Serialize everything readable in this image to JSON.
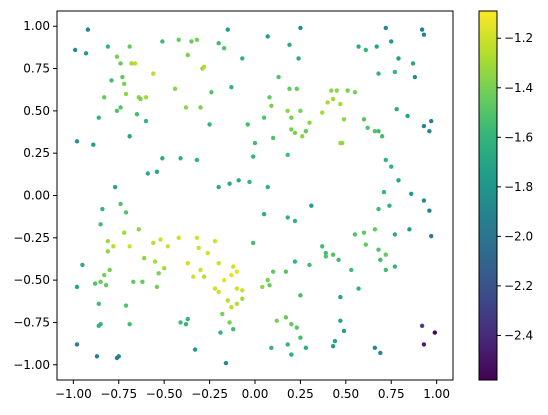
{
  "chart_data": {
    "type": "scatter",
    "title": "",
    "xlabel": "",
    "ylabel": "",
    "xlim": [
      -1.09,
      1.09
    ],
    "ylim": [
      -1.09,
      1.09
    ],
    "xticks": [
      -1.0,
      -0.75,
      -0.5,
      -0.25,
      0.0,
      0.25,
      0.5,
      0.75,
      1.0
    ],
    "xtick_labels": [
      "−1.00",
      "−0.75",
      "−0.50",
      "−0.25",
      "0.00",
      "0.25",
      "0.50",
      "0.75",
      "1.00"
    ],
    "yticks": [
      -1.0,
      -0.75,
      -0.5,
      -0.25,
      0.0,
      0.25,
      0.5,
      0.75,
      1.0
    ],
    "ytick_labels": [
      "−1.00",
      "−0.75",
      "−0.50",
      "−0.25",
      "0.00",
      "0.25",
      "0.50",
      "0.75",
      "1.00"
    ],
    "grid": false,
    "colormap": "viridis",
    "colorbar": {
      "vmin": -2.58,
      "vmax": -1.09,
      "ticks": [
        -2.4,
        -2.2,
        -2.0,
        -1.8,
        -1.6,
        -1.4,
        -1.2
      ],
      "tick_labels": [
        "−2.4",
        "−2.2",
        "−2.0",
        "−1.8",
        "−1.6",
        "−1.4",
        "−1.2"
      ]
    },
    "points": [
      {
        "x": -0.99,
        "y": 0.86,
        "c": -1.85
      },
      {
        "x": -0.92,
        "y": 0.98,
        "c": -1.9
      },
      {
        "x": -0.93,
        "y": 0.84,
        "c": -1.75
      },
      {
        "x": -0.81,
        "y": 0.88,
        "c": -1.6
      },
      {
        "x": -0.79,
        "y": 0.68,
        "c": -1.55
      },
      {
        "x": -0.76,
        "y": 0.82,
        "c": -1.4
      },
      {
        "x": -0.74,
        "y": 0.78,
        "c": -1.45
      },
      {
        "x": -0.69,
        "y": 0.88,
        "c": -1.45
      },
      {
        "x": -0.68,
        "y": 0.78,
        "c": -1.3
      },
      {
        "x": -0.66,
        "y": 0.78,
        "c": -1.25
      },
      {
        "x": -0.73,
        "y": 0.7,
        "c": -1.45
      },
      {
        "x": -0.72,
        "y": 0.66,
        "c": -1.4
      },
      {
        "x": -0.83,
        "y": 0.58,
        "c": -1.45
      },
      {
        "x": -0.74,
        "y": 0.52,
        "c": -1.5
      },
      {
        "x": -0.71,
        "y": 0.6,
        "c": -1.35
      },
      {
        "x": -0.64,
        "y": 0.58,
        "c": -1.35
      },
      {
        "x": -0.63,
        "y": 0.57,
        "c": -1.4
      },
      {
        "x": -0.6,
        "y": 0.58,
        "c": -1.3
      },
      {
        "x": -0.65,
        "y": 0.48,
        "c": -1.55
      },
      {
        "x": -0.86,
        "y": 0.46,
        "c": -1.6
      },
      {
        "x": -0.76,
        "y": 0.5,
        "c": -1.5
      },
      {
        "x": -0.56,
        "y": 0.72,
        "c": -1.25
      },
      {
        "x": -0.51,
        "y": 0.91,
        "c": -1.55
      },
      {
        "x": -0.42,
        "y": 0.92,
        "c": -1.45
      },
      {
        "x": -0.35,
        "y": 0.91,
        "c": -1.45
      },
      {
        "x": -0.37,
        "y": 0.83,
        "c": -1.4
      },
      {
        "x": -0.32,
        "y": 0.92,
        "c": -1.4
      },
      {
        "x": -0.28,
        "y": 0.76,
        "c": -1.25
      },
      {
        "x": -0.29,
        "y": 0.75,
        "c": -1.3
      },
      {
        "x": -0.2,
        "y": 0.9,
        "c": -1.55
      },
      {
        "x": -0.17,
        "y": 0.87,
        "c": -1.5
      },
      {
        "x": -0.15,
        "y": 0.98,
        "c": -1.75
      },
      {
        "x": -0.07,
        "y": 0.81,
        "c": -1.6
      },
      {
        "x": 0.07,
        "y": 0.94,
        "c": -1.75
      },
      {
        "x": 0.19,
        "y": 0.89,
        "c": -1.65
      },
      {
        "x": 0.25,
        "y": 0.99,
        "c": -1.85
      },
      {
        "x": 0.24,
        "y": 0.81,
        "c": -1.65
      },
      {
        "x": -0.44,
        "y": 0.63,
        "c": -1.35
      },
      {
        "x": -0.38,
        "y": 0.52,
        "c": -1.35
      },
      {
        "x": -0.3,
        "y": 0.52,
        "c": -1.4
      },
      {
        "x": -0.24,
        "y": 0.61,
        "c": -1.5
      },
      {
        "x": -0.13,
        "y": 0.64,
        "c": -1.6
      },
      {
        "x": -0.6,
        "y": 0.44,
        "c": -1.6
      },
      {
        "x": -0.69,
        "y": 0.35,
        "c": -1.7
      },
      {
        "x": -0.98,
        "y": 0.32,
        "c": -1.8
      },
      {
        "x": -0.89,
        "y": 0.3,
        "c": -1.75
      },
      {
        "x": -0.25,
        "y": 0.42,
        "c": -1.6
      },
      {
        "x": -0.51,
        "y": 0.22,
        "c": -1.65
      },
      {
        "x": -0.41,
        "y": 0.22,
        "c": -1.6
      },
      {
        "x": -0.32,
        "y": 0.21,
        "c": -1.6
      },
      {
        "x": -0.04,
        "y": 0.42,
        "c": -1.55
      },
      {
        "x": 0.05,
        "y": 0.46,
        "c": -1.5
      },
      {
        "x": 0.08,
        "y": 0.58,
        "c": -1.45
      },
      {
        "x": 0.09,
        "y": 0.53,
        "c": -1.4
      },
      {
        "x": 0.1,
        "y": 0.34,
        "c": -1.5
      },
      {
        "x": 0.0,
        "y": 0.31,
        "c": -1.55
      },
      {
        "x": -0.01,
        "y": 0.23,
        "c": -1.6
      },
      {
        "x": 0.13,
        "y": 0.7,
        "c": -1.5
      },
      {
        "x": 0.19,
        "y": 0.63,
        "c": -1.45
      },
      {
        "x": 0.23,
        "y": 0.63,
        "c": -1.45
      },
      {
        "x": 0.18,
        "y": 0.5,
        "c": -1.35
      },
      {
        "x": 0.2,
        "y": 0.46,
        "c": -1.4
      },
      {
        "x": 0.25,
        "y": 0.5,
        "c": -1.4
      },
      {
        "x": 0.2,
        "y": 0.39,
        "c": -1.4
      },
      {
        "x": 0.22,
        "y": 0.37,
        "c": -1.4
      },
      {
        "x": 0.26,
        "y": 0.35,
        "c": -1.35
      },
      {
        "x": 0.28,
        "y": 0.38,
        "c": -1.45
      },
      {
        "x": 0.18,
        "y": 0.24,
        "c": -1.55
      },
      {
        "x": 0.3,
        "y": 0.43,
        "c": -1.35
      },
      {
        "x": 0.37,
        "y": 0.49,
        "c": -1.3
      },
      {
        "x": 0.4,
        "y": 0.55,
        "c": -1.3
      },
      {
        "x": 0.42,
        "y": 0.62,
        "c": -1.35
      },
      {
        "x": 0.43,
        "y": 0.57,
        "c": -1.3
      },
      {
        "x": 0.45,
        "y": 0.62,
        "c": -1.35
      },
      {
        "x": 0.47,
        "y": 0.54,
        "c": -1.3
      },
      {
        "x": 0.51,
        "y": 0.62,
        "c": -1.4
      },
      {
        "x": 0.55,
        "y": 0.61,
        "c": -1.4
      },
      {
        "x": 0.49,
        "y": 0.45,
        "c": -1.35
      },
      {
        "x": 0.47,
        "y": 0.31,
        "c": -1.3
      },
      {
        "x": 0.48,
        "y": 0.31,
        "c": -1.35
      },
      {
        "x": 0.6,
        "y": 0.45,
        "c": -1.5
      },
      {
        "x": 0.62,
        "y": 0.4,
        "c": -1.5
      },
      {
        "x": 0.66,
        "y": 0.38,
        "c": -1.5
      },
      {
        "x": 0.68,
        "y": 0.38,
        "c": -1.55
      },
      {
        "x": 0.7,
        "y": 0.35,
        "c": -1.55
      },
      {
        "x": 0.57,
        "y": 0.88,
        "c": -1.65
      },
      {
        "x": 0.61,
        "y": 0.86,
        "c": -1.6
      },
      {
        "x": 0.67,
        "y": 0.88,
        "c": -1.7
      },
      {
        "x": 0.72,
        "y": 0.99,
        "c": -1.9
      },
      {
        "x": 0.75,
        "y": 0.91,
        "c": -1.8
      },
      {
        "x": 0.68,
        "y": 0.72,
        "c": -1.6
      },
      {
        "x": 0.77,
        "y": 0.73,
        "c": -1.6
      },
      {
        "x": 0.79,
        "y": 0.81,
        "c": -1.75
      },
      {
        "x": 0.92,
        "y": 0.98,
        "c": -1.95
      },
      {
        "x": 0.93,
        "y": 0.95,
        "c": -1.9
      },
      {
        "x": 0.88,
        "y": 0.7,
        "c": -1.85
      },
      {
        "x": 0.87,
        "y": 0.78,
        "c": -1.7
      },
      {
        "x": 0.78,
        "y": 0.51,
        "c": -1.65
      },
      {
        "x": 0.84,
        "y": 0.47,
        "c": -1.7
      },
      {
        "x": 0.93,
        "y": 0.41,
        "c": -1.9
      },
      {
        "x": 0.97,
        "y": 0.44,
        "c": -1.95
      },
      {
        "x": 0.96,
        "y": 0.38,
        "c": -1.9
      },
      {
        "x": 0.72,
        "y": 0.21,
        "c": -1.6
      },
      {
        "x": 0.75,
        "y": 0.17,
        "c": -1.6
      },
      {
        "x": 0.79,
        "y": 0.09,
        "c": -1.7
      },
      {
        "x": 0.86,
        "y": 0.01,
        "c": -1.75
      },
      {
        "x": 0.93,
        "y": -0.03,
        "c": -1.85
      },
      {
        "x": 0.71,
        "y": 0.02,
        "c": -1.6
      },
      {
        "x": 0.68,
        "y": -0.08,
        "c": -1.55
      },
      {
        "x": 0.74,
        "y": -0.06,
        "c": -1.6
      },
      {
        "x": 0.96,
        "y": -0.09,
        "c": -1.9
      },
      {
        "x": 0.85,
        "y": -0.2,
        "c": -1.75
      },
      {
        "x": 0.97,
        "y": -0.24,
        "c": -1.95
      },
      {
        "x": 0.77,
        "y": -0.23,
        "c": -1.65
      },
      {
        "x": 0.66,
        "y": -0.2,
        "c": -1.45
      },
      {
        "x": 0.6,
        "y": -0.22,
        "c": -1.45
      },
      {
        "x": 0.55,
        "y": -0.23,
        "c": -1.5
      },
      {
        "x": 0.61,
        "y": -0.29,
        "c": -1.45
      },
      {
        "x": 0.68,
        "y": -0.32,
        "c": -1.5
      },
      {
        "x": 0.72,
        "y": -0.35,
        "c": -1.45
      },
      {
        "x": 0.69,
        "y": -0.38,
        "c": -1.55
      },
      {
        "x": 0.72,
        "y": -0.44,
        "c": -1.55
      },
      {
        "x": 0.77,
        "y": -0.42,
        "c": -1.6
      },
      {
        "x": 0.53,
        "y": -0.44,
        "c": -1.55
      },
      {
        "x": 0.57,
        "y": -0.55,
        "c": -1.6
      },
      {
        "x": 0.47,
        "y": -0.6,
        "c": -1.7
      },
      {
        "x": 0.47,
        "y": -0.74,
        "c": -1.7
      },
      {
        "x": 0.49,
        "y": -0.8,
        "c": -1.75
      },
      {
        "x": 0.37,
        "y": -0.3,
        "c": -1.55
      },
      {
        "x": 0.39,
        "y": -0.34,
        "c": -1.55
      },
      {
        "x": 0.39,
        "y": -0.36,
        "c": -1.5
      },
      {
        "x": 0.43,
        "y": -0.35,
        "c": -1.5
      },
      {
        "x": 0.46,
        "y": -0.38,
        "c": -1.55
      },
      {
        "x": 0.3,
        "y": -0.41,
        "c": -1.55
      },
      {
        "x": 0.22,
        "y": -0.39,
        "c": -1.6
      },
      {
        "x": 0.25,
        "y": -0.59,
        "c": -1.55
      },
      {
        "x": 0.17,
        "y": -0.45,
        "c": -1.5
      },
      {
        "x": 0.1,
        "y": -0.45,
        "c": -1.45
      },
      {
        "x": 0.08,
        "y": -0.53,
        "c": -1.45
      },
      {
        "x": -0.01,
        "y": -0.28,
        "c": -1.55
      },
      {
        "x": 0.05,
        "y": -0.11,
        "c": -1.65
      },
      {
        "x": 0.18,
        "y": -0.13,
        "c": -1.6
      },
      {
        "x": 0.22,
        "y": -0.15,
        "c": -1.6
      },
      {
        "x": 0.31,
        "y": -0.06,
        "c": -1.75
      },
      {
        "x": 0.07,
        "y": 0.05,
        "c": -1.6
      },
      {
        "x": -0.03,
        "y": 0.08,
        "c": -1.6
      },
      {
        "x": -0.09,
        "y": 0.09,
        "c": -1.65
      },
      {
        "x": -0.14,
        "y": 0.07,
        "c": -1.65
      },
      {
        "x": -0.2,
        "y": 0.05,
        "c": -1.65
      },
      {
        "x": -0.54,
        "y": 0.14,
        "c": -1.7
      },
      {
        "x": -0.59,
        "y": 0.13,
        "c": -1.65
      },
      {
        "x": -0.77,
        "y": 0.05,
        "c": -1.7
      },
      {
        "x": -0.74,
        "y": -0.05,
        "c": -1.5
      },
      {
        "x": -0.71,
        "y": -0.1,
        "c": -1.5
      },
      {
        "x": -0.84,
        "y": -0.08,
        "c": -1.6
      },
      {
        "x": -0.85,
        "y": -0.17,
        "c": -1.55
      },
      {
        "x": -0.64,
        "y": -0.2,
        "c": -1.35
      },
      {
        "x": -0.72,
        "y": -0.22,
        "c": -1.3
      },
      {
        "x": -0.81,
        "y": -0.27,
        "c": -1.3
      },
      {
        "x": -0.78,
        "y": -0.3,
        "c": -1.25
      },
      {
        "x": -0.69,
        "y": -0.3,
        "c": -1.2
      },
      {
        "x": -0.56,
        "y": -0.28,
        "c": -1.25
      },
      {
        "x": -0.52,
        "y": -0.26,
        "c": -1.2
      },
      {
        "x": -0.48,
        "y": -0.3,
        "c": -1.2
      },
      {
        "x": -0.61,
        "y": -0.37,
        "c": -1.35
      },
      {
        "x": -0.55,
        "y": -0.39,
        "c": -1.3
      },
      {
        "x": -0.5,
        "y": -0.43,
        "c": -1.3
      },
      {
        "x": -0.53,
        "y": -0.46,
        "c": -1.4
      },
      {
        "x": -0.81,
        "y": -0.33,
        "c": -1.35
      },
      {
        "x": -0.8,
        "y": -0.44,
        "c": -1.4
      },
      {
        "x": -0.83,
        "y": -0.47,
        "c": -1.4
      },
      {
        "x": -0.85,
        "y": -0.51,
        "c": -1.45
      },
      {
        "x": -0.88,
        "y": -0.52,
        "c": -1.5
      },
      {
        "x": -0.82,
        "y": -0.53,
        "c": -1.45
      },
      {
        "x": -0.95,
        "y": -0.41,
        "c": -1.65
      },
      {
        "x": -0.98,
        "y": -0.54,
        "c": -1.7
      },
      {
        "x": -0.86,
        "y": -0.64,
        "c": -1.55
      },
      {
        "x": -0.85,
        "y": -0.76,
        "c": -1.6
      },
      {
        "x": -0.86,
        "y": -0.77,
        "c": -1.6
      },
      {
        "x": -0.69,
        "y": -0.76,
        "c": -1.55
      },
      {
        "x": -0.54,
        "y": -0.54,
        "c": -1.4
      },
      {
        "x": -0.62,
        "y": -0.51,
        "c": -1.45
      },
      {
        "x": -0.67,
        "y": -0.51,
        "c": -1.45
      },
      {
        "x": -0.71,
        "y": -0.65,
        "c": -1.5
      },
      {
        "x": -0.42,
        "y": -0.25,
        "c": -1.2
      },
      {
        "x": -0.37,
        "y": -0.4,
        "c": -1.2
      },
      {
        "x": -0.34,
        "y": -0.48,
        "c": -1.2
      },
      {
        "x": -0.3,
        "y": -0.44,
        "c": -1.2
      },
      {
        "x": -0.31,
        "y": -0.31,
        "c": -1.2
      },
      {
        "x": -0.32,
        "y": -0.25,
        "c": -1.2
      },
      {
        "x": -0.26,
        "y": -0.34,
        "c": -1.2
      },
      {
        "x": -0.22,
        "y": -0.27,
        "c": -1.2
      },
      {
        "x": -0.2,
        "y": -0.4,
        "c": -1.2
      },
      {
        "x": -0.17,
        "y": -0.5,
        "c": -1.15
      },
      {
        "x": -0.13,
        "y": -0.47,
        "c": -1.15
      },
      {
        "x": -0.1,
        "y": -0.45,
        "c": -1.15
      },
      {
        "x": -0.1,
        "y": -0.55,
        "c": -1.2
      },
      {
        "x": -0.07,
        "y": -0.56,
        "c": -1.2
      },
      {
        "x": -0.12,
        "y": -0.42,
        "c": -1.2
      },
      {
        "x": -0.22,
        "y": -0.55,
        "c": -1.2
      },
      {
        "x": -0.2,
        "y": -0.57,
        "c": -1.2
      },
      {
        "x": -0.15,
        "y": -0.62,
        "c": -1.25
      },
      {
        "x": -0.13,
        "y": -0.66,
        "c": -1.25
      },
      {
        "x": -0.1,
        "y": -0.64,
        "c": -1.25
      },
      {
        "x": -0.07,
        "y": -0.61,
        "c": -1.3
      },
      {
        "x": -0.14,
        "y": -0.75,
        "c": -1.4
      },
      {
        "x": -0.18,
        "y": -0.7,
        "c": -1.4
      },
      {
        "x": -0.19,
        "y": -0.81,
        "c": -1.6
      },
      {
        "x": -0.12,
        "y": -0.79,
        "c": -1.55
      },
      {
        "x": -0.28,
        "y": -0.48,
        "c": -1.25
      },
      {
        "x": -0.38,
        "y": -0.76,
        "c": -1.6
      },
      {
        "x": -0.41,
        "y": -0.75,
        "c": -1.55
      },
      {
        "x": -0.37,
        "y": -0.73,
        "c": -1.6
      },
      {
        "x": -0.33,
        "y": -0.91,
        "c": -1.75
      },
      {
        "x": -0.16,
        "y": -0.99,
        "c": -1.85
      },
      {
        "x": 0.04,
        "y": -0.54,
        "c": -1.35
      },
      {
        "x": 0.07,
        "y": -0.5,
        "c": -1.4
      },
      {
        "x": 0.12,
        "y": -0.74,
        "c": -1.4
      },
      {
        "x": 0.17,
        "y": -0.72,
        "c": -1.45
      },
      {
        "x": 0.2,
        "y": -0.76,
        "c": -1.45
      },
      {
        "x": 0.23,
        "y": -0.78,
        "c": -1.5
      },
      {
        "x": 0.25,
        "y": -0.84,
        "c": -1.55
      },
      {
        "x": 0.18,
        "y": -0.88,
        "c": -1.6
      },
      {
        "x": 0.09,
        "y": -0.9,
        "c": -1.6
      },
      {
        "x": 0.2,
        "y": -0.94,
        "c": -1.65
      },
      {
        "x": 0.28,
        "y": -0.9,
        "c": -1.65
      },
      {
        "x": 0.44,
        "y": -0.86,
        "c": -1.7
      },
      {
        "x": 0.43,
        "y": -0.89,
        "c": -1.75
      },
      {
        "x": 0.66,
        "y": -0.9,
        "c": -1.85
      },
      {
        "x": 0.69,
        "y": -0.93,
        "c": -1.9
      },
      {
        "x": -0.75,
        "y": -0.95,
        "c": -1.9
      },
      {
        "x": -0.76,
        "y": -0.96,
        "c": -1.95
      },
      {
        "x": -0.87,
        "y": -0.95,
        "c": -1.95
      },
      {
        "x": -0.98,
        "y": -0.88,
        "c": -1.95
      },
      {
        "x": 0.92,
        "y": -0.77,
        "c": -2.3
      },
      {
        "x": 0.93,
        "y": -0.88,
        "c": -2.45
      },
      {
        "x": 0.99,
        "y": -0.81,
        "c": -2.55
      }
    ]
  }
}
